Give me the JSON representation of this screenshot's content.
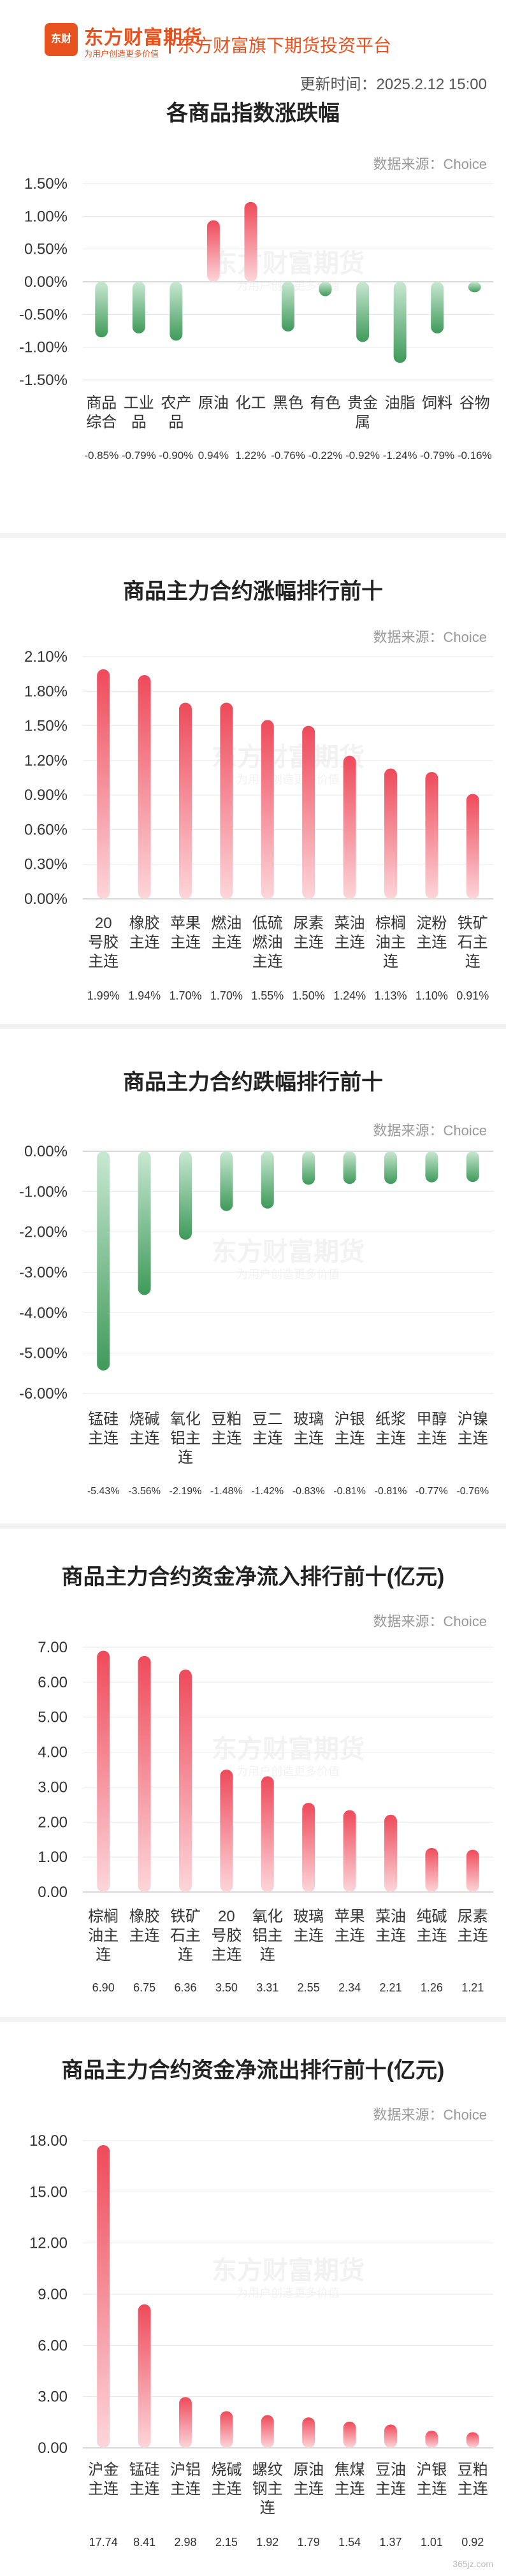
{
  "header": {
    "logo_text": "东方财富期货",
    "brand": "东方财富期货",
    "brand_sub": "为用户创造更多价值",
    "slogan": "东方财富旗下期货投资平台",
    "update_time": "更新时间：2025.2.12 15:00"
  },
  "watermark": "东方财富期货",
  "watermark_sub": "为用户创造更多价值",
  "footer_logo": "365jz.com",
  "chart_data": [
    {
      "type": "bar",
      "title": "各商品指数涨跌幅",
      "source": "数据来源：Choice",
      "categories": [
        "商品综合",
        "工业品",
        "农产品",
        "原油",
        "化工",
        "黑色",
        "有色",
        "贵金属",
        "油脂",
        "饲料",
        "谷物"
      ],
      "values": [
        -0.85,
        -0.79,
        -0.9,
        0.94,
        1.22,
        -0.76,
        -0.22,
        -0.92,
        -1.24,
        -0.79,
        -0.16
      ],
      "value_labels": [
        "-0.85%",
        "-0.79%",
        "-0.90%",
        "0.94%",
        "1.22%",
        "-0.76%",
        "-0.22%",
        "-0.92%",
        "-1.24%",
        "-0.79%",
        "-0.16%"
      ],
      "ylim": [
        -1.5,
        1.5
      ],
      "yticks": [
        "1.50%",
        "1.00%",
        "0.50%",
        "0.00%",
        "-0.50%",
        "-1.00%",
        "-1.50%"
      ]
    },
    {
      "type": "bar",
      "title": "商品主力合约涨幅排行前十",
      "source": "数据来源：Choice",
      "categories": [
        "20号胶主连",
        "橡胶主连",
        "苹果主连",
        "燃油主连",
        "低硫燃油主连",
        "尿素主连",
        "菜油主连",
        "棕榈油主连",
        "淀粉主连",
        "铁矿石主连"
      ],
      "values": [
        1.99,
        1.94,
        1.7,
        1.7,
        1.55,
        1.5,
        1.24,
        1.13,
        1.1,
        0.91
      ],
      "value_labels": [
        "1.99%",
        "1.94%",
        "1.70%",
        "1.70%",
        "1.55%",
        "1.50%",
        "1.24%",
        "1.13%",
        "1.10%",
        "0.91%"
      ],
      "ylim": [
        0,
        2.1
      ],
      "yticks": [
        "2.10%",
        "1.80%",
        "1.50%",
        "1.20%",
        "0.90%",
        "0.60%",
        "0.30%",
        "0.00%"
      ]
    },
    {
      "type": "bar",
      "title": "商品主力合约跌幅排行前十",
      "source": "数据来源：Choice",
      "categories": [
        "锰硅主连",
        "烧碱主连",
        "氧化铝主连",
        "豆粕主连",
        "豆二主连",
        "玻璃主连",
        "沪银主连",
        "纸浆主连",
        "甲醇主连",
        "沪镍主连"
      ],
      "values": [
        -5.43,
        -3.56,
        -2.19,
        -1.48,
        -1.42,
        -0.83,
        -0.81,
        -0.81,
        -0.77,
        -0.76
      ],
      "value_labels": [
        "-5.43%",
        "-3.56%",
        "-2.19%",
        "-1.48%",
        "-1.42%",
        "-0.83%",
        "-0.81%",
        "-0.81%",
        "-0.77%",
        "-0.76%"
      ],
      "ylim": [
        -6,
        0
      ],
      "yticks": [
        "0.00%",
        "-1.00%",
        "-2.00%",
        "-3.00%",
        "-4.00%",
        "-5.00%",
        "-6.00%"
      ]
    },
    {
      "type": "bar",
      "title": "商品主力合约资金净流入排行前十(亿元)",
      "source": "数据来源：Choice",
      "categories": [
        "棕榈油主连",
        "橡胶主连",
        "铁矿石主连",
        "20号胶主连",
        "氧化铝主连",
        "玻璃主连",
        "苹果主连",
        "菜油主连",
        "纯碱主连",
        "尿素主连"
      ],
      "values": [
        6.9,
        6.75,
        6.36,
        3.5,
        3.31,
        2.55,
        2.34,
        2.21,
        1.26,
        1.21
      ],
      "value_labels": [
        "6.90",
        "6.75",
        "6.36",
        "3.50",
        "3.31",
        "2.55",
        "2.34",
        "2.21",
        "1.26",
        "1.21"
      ],
      "ylim": [
        0,
        7
      ],
      "yticks": [
        "7.00",
        "6.00",
        "5.00",
        "4.00",
        "3.00",
        "2.00",
        "1.00",
        "0.00"
      ]
    },
    {
      "type": "bar",
      "title": "商品主力合约资金净流出排行前十(亿元)",
      "source": "数据来源：Choice",
      "categories": [
        "沪金主连",
        "锰硅主连",
        "沪铝主连",
        "烧碱主连",
        "螺纹钢主连",
        "原油主连",
        "焦煤主连",
        "豆油主连",
        "沪银主连",
        "豆粕主连"
      ],
      "values": [
        17.74,
        8.41,
        2.98,
        2.15,
        1.92,
        1.79,
        1.54,
        1.37,
        1.01,
        0.92
      ],
      "value_labels": [
        "17.74",
        "8.41",
        "2.98",
        "2.15",
        "1.92",
        "1.79",
        "1.54",
        "1.37",
        "1.01",
        "0.92"
      ],
      "ylim": [
        0,
        18
      ],
      "yticks": [
        "18.00",
        "15.00",
        "12.00",
        "9.00",
        "6.00",
        "3.00",
        "0.00"
      ]
    }
  ]
}
